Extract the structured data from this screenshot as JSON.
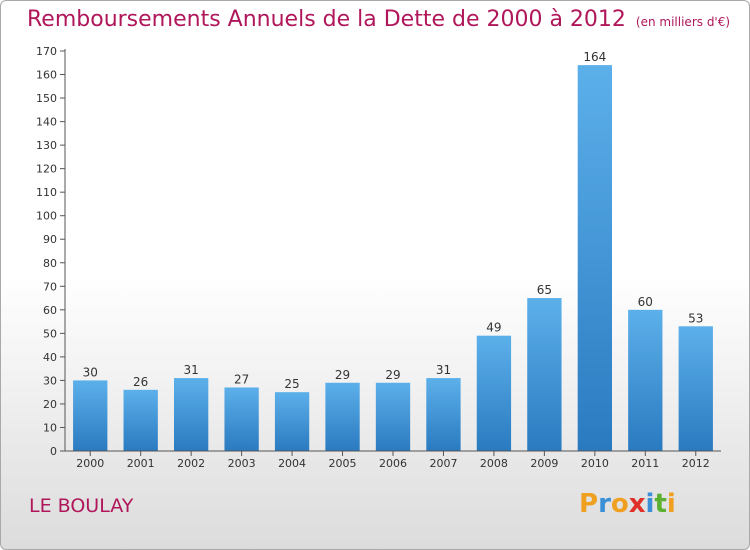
{
  "title": "Remboursements Annuels de la Dette de 2000 à 2012",
  "unit_note": "(en milliers d'€)",
  "commune": "LE BOULAY",
  "logo": {
    "letters": [
      "P",
      "r",
      "o",
      "x",
      "i",
      "t",
      "i"
    ],
    "colors": [
      "#f0a020",
      "#3a8fd6",
      "#f0a020",
      "#e0302a",
      "#3a8fd6",
      "#5bb030",
      "#f0a020"
    ]
  },
  "colors": {
    "title": "#b0175a",
    "bar_light": "#5cb0ea",
    "bar_dark": "#2a7ac0",
    "axis": "#555555",
    "tick_label": "#333333"
  },
  "chart_data": {
    "type": "bar",
    "title": "Remboursements Annuels de la Dette de 2000 à 2012",
    "xlabel": "",
    "ylabel": "",
    "categories": [
      "2000",
      "2001",
      "2002",
      "2003",
      "2004",
      "2005",
      "2006",
      "2007",
      "2008",
      "2009",
      "2010",
      "2011",
      "2012"
    ],
    "values": [
      30,
      26,
      31,
      27,
      25,
      29,
      29,
      31,
      49,
      65,
      164,
      60,
      53
    ],
    "ylim": [
      0,
      170
    ],
    "ytick_step": 10,
    "grid": false,
    "legend": "none"
  }
}
